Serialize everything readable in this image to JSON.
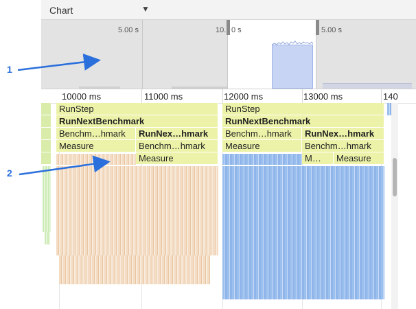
{
  "toolbar": {
    "select_label": "Chart",
    "caret_icon": "triangle-down"
  },
  "overview": {
    "ticks": [
      {
        "label": "5.00 s"
      },
      {
        "label": "10."
      },
      {
        "label": "0 s"
      },
      {
        "label": "5.00 s"
      }
    ]
  },
  "ruler": {
    "ticks": [
      "10000 ms",
      "11000 ms",
      "12000 ms",
      "13000 ms",
      "140"
    ]
  },
  "flame": {
    "left_group": {
      "row1": "RunStep",
      "row2": "RunNextBenchmark",
      "row3a": "Benchm…hmark",
      "row3b": "RunNex…hmark",
      "row4a": "Measure",
      "row4b": "Benchm…hmark",
      "row5b": "Measure"
    },
    "right_group": {
      "row1": "RunStep",
      "row2": "RunNextBenchmark",
      "row3a": "Benchm…hmark",
      "row3b": "RunNex…hmark",
      "row4a": "Measure",
      "row4b": "Benchm…hmark",
      "row5a": "M…",
      "row5b": "Measure"
    }
  },
  "callouts": {
    "one": "1",
    "two": "2"
  },
  "colors": {
    "accent_arrow": "#2b6fdc",
    "frame_yellow": "#ecf3a9",
    "orange_activity": "#f3dcc3",
    "blue_activity": "#9cc0ee"
  }
}
